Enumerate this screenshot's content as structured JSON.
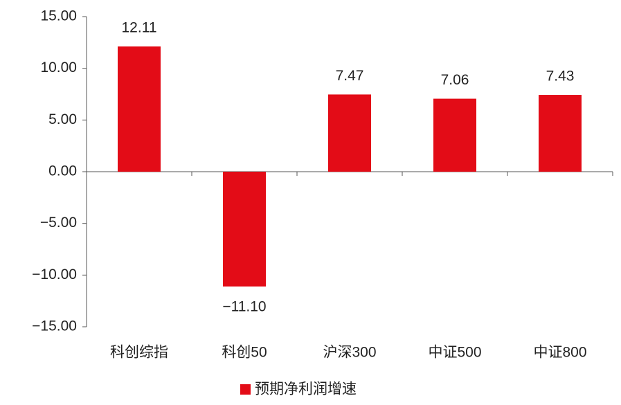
{
  "chart_data": {
    "type": "bar",
    "categories": [
      "科创综指",
      "科创50",
      "沪深300",
      "中证500",
      "中证800"
    ],
    "series": [
      {
        "name": "预期净利润增速",
        "color": "#e30c17",
        "values": [
          12.11,
          -11.1,
          7.47,
          7.06,
          7.43
        ],
        "value_labels": [
          "12.11",
          "−11.10",
          "7.47",
          "7.06",
          "7.43"
        ]
      }
    ],
    "ylim": [
      -15,
      15
    ],
    "yticks": [
      {
        "value": -15,
        "label": "−15.00"
      },
      {
        "value": -10,
        "label": "−10.00"
      },
      {
        "value": -5,
        "label": "−5.00"
      },
      {
        "value": 0,
        "label": "0.00"
      },
      {
        "value": 5,
        "label": "5.00"
      },
      {
        "value": 10,
        "label": "10.00"
      },
      {
        "value": 15,
        "label": "15.00"
      }
    ],
    "grid": false,
    "legend": "bottom"
  }
}
